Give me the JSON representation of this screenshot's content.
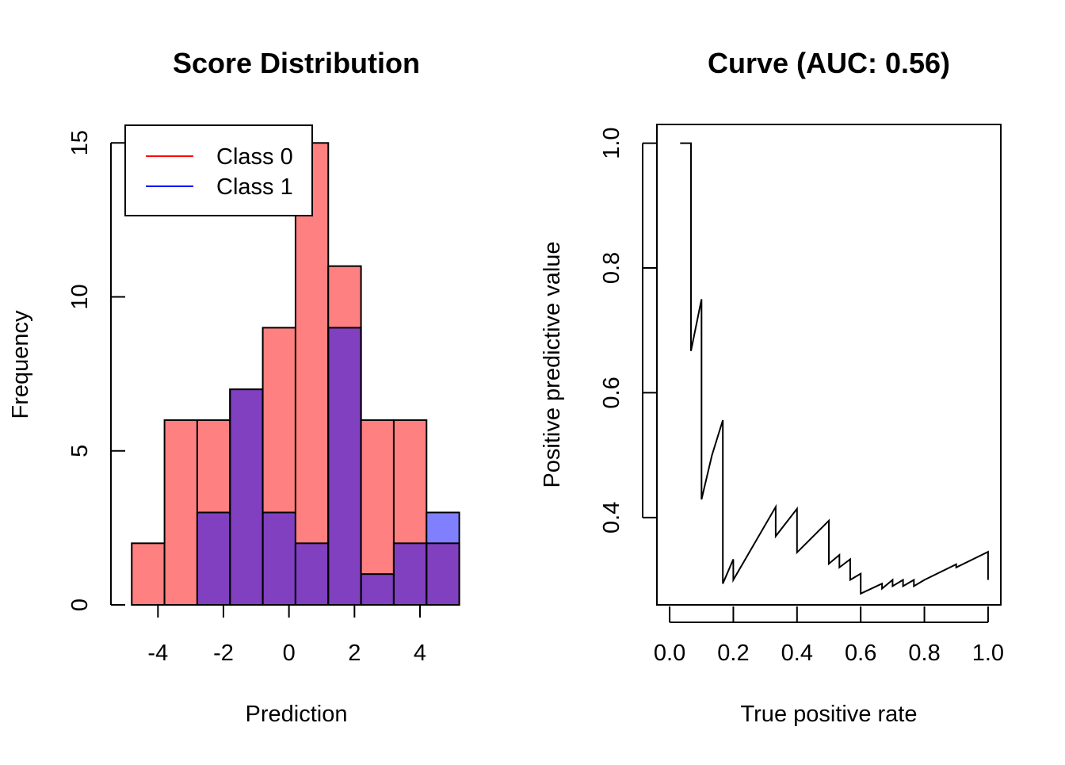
{
  "colors": {
    "class0_fill": "#ff8080",
    "class1_fill": "#8080ff",
    "overlap_fill": "#8040c0",
    "class0_line": "#ff0000",
    "class1_line": "#0000ff",
    "curve": "#000000"
  },
  "chart_data": [
    {
      "type": "bar",
      "subtype": "overlapping-histogram",
      "title": "Score Distribution",
      "xlabel": "Prediction",
      "ylabel": "Frequency",
      "xlim": [
        -5.0,
        5.5
      ],
      "ylim": [
        0,
        15.6
      ],
      "x_ticks": [
        -4,
        -2,
        0,
        2,
        4
      ],
      "x_tick_labels": [
        "-4",
        "-2",
        "0",
        "2",
        "4"
      ],
      "y_ticks": [
        0,
        5,
        10,
        15
      ],
      "y_tick_labels": [
        "0",
        "5",
        "10",
        "15"
      ],
      "bin_edges": [
        -4.8,
        -3.8,
        -2.8,
        -1.8,
        -0.8,
        0.2,
        1.2,
        2.2,
        3.2,
        4.2,
        5.2
      ],
      "series": [
        {
          "name": "Class 0",
          "values": [
            2,
            6,
            6,
            7,
            9,
            15,
            11,
            6,
            6,
            2
          ]
        },
        {
          "name": "Class 1",
          "values": [
            0,
            0,
            3,
            7,
            3,
            2,
            9,
            1,
            2,
            3
          ]
        }
      ],
      "legend": {
        "position": "top-left",
        "entries": [
          "Class 0",
          "Class 1"
        ]
      },
      "grid": false
    },
    {
      "type": "line",
      "title": "Curve (AUC: 0.56)",
      "xlabel": "True positive rate",
      "ylabel": "Positive predictive value",
      "xlim": [
        -0.04,
        1.04
      ],
      "ylim": [
        0.26,
        1.03
      ],
      "x_ticks": [
        0,
        0.2,
        0.4,
        0.6,
        0.8,
        1.0
      ],
      "x_tick_labels": [
        "0.0",
        "0.2",
        "0.4",
        "0.6",
        "0.8",
        "1.0"
      ],
      "y_ticks": [
        0.4,
        0.6,
        0.8,
        1.0
      ],
      "y_tick_labels": [
        "0.4",
        "0.6",
        "0.8",
        "1.0"
      ],
      "grid": false,
      "series": [
        {
          "x": [
            0.033,
            0.067,
            0.067,
            0.1,
            0.1,
            0.133,
            0.167,
            0.167,
            0.2,
            0.2,
            0.333,
            0.333,
            0.4,
            0.4,
            0.5,
            0.5,
            0.533,
            0.533,
            0.567,
            0.567,
            0.6,
            0.6,
            0.667,
            0.667,
            0.7,
            0.7,
            0.733,
            0.733,
            0.767,
            0.767,
            0.8,
            0.8,
            0.9,
            0.9,
            1.0,
            1.0
          ],
          "y": [
            1.0,
            1.0,
            0.667,
            0.75,
            0.429,
            0.5,
            0.556,
            0.294,
            0.333,
            0.3,
            0.417,
            0.37,
            0.414,
            0.344,
            0.395,
            0.326,
            0.34,
            0.32,
            0.333,
            0.3,
            0.31,
            0.278,
            0.294,
            0.286,
            0.3,
            0.29,
            0.3,
            0.29,
            0.3,
            0.29,
            0.3,
            0.3,
            0.325,
            0.32,
            0.345,
            0.3
          ]
        }
      ]
    }
  ]
}
